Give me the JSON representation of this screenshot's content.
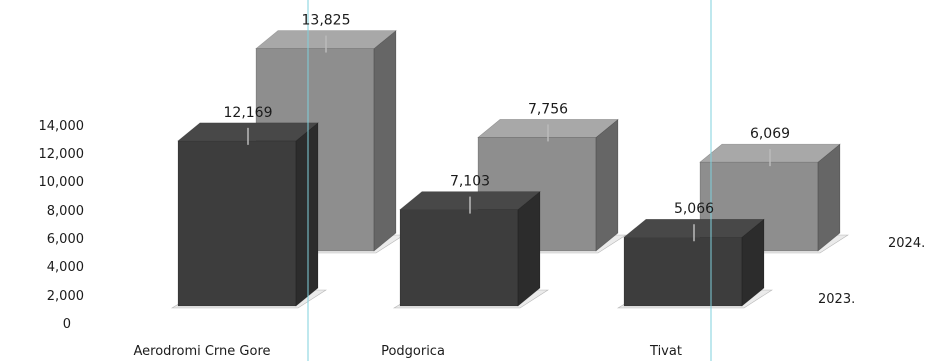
{
  "chart_data": {
    "type": "bar",
    "categories": [
      "Aerodromi Crne Gore",
      "Podgorica",
      "Tivat"
    ],
    "series": [
      {
        "name": "2023.",
        "values": [
          12169,
          7103,
          5066
        ],
        "labels": [
          "12,169",
          "7,103",
          "5,066"
        ],
        "color": "#3d3d3d"
      },
      {
        "name": "2024.",
        "values": [
          13825,
          7756,
          6069
        ],
        "labels": [
          "13,825",
          "7,756",
          "6,069"
        ],
        "color": "#8e8e8e"
      }
    ],
    "y_ticks": [
      "14,000",
      "12,000",
      "10,000",
      "8,000",
      "6,000",
      "4,000",
      "2,000",
      "0"
    ],
    "ylim": [
      0,
      14000
    ],
    "grid": false,
    "three_d": true,
    "reference_line_color": "#7fd0dc"
  }
}
